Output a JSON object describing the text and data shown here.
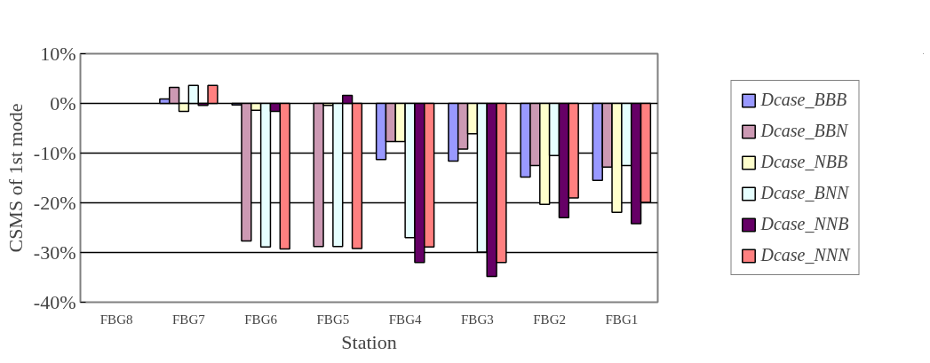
{
  "chart_data": {
    "type": "bar",
    "xlabel": "Station",
    "ylabel": "CSMS of 1st mode",
    "categories": [
      "FBG8",
      "FBG7",
      "FBG6",
      "FBG5",
      "FBG4",
      "FBG3",
      "FBG2",
      "FBG1"
    ],
    "series": [
      {
        "name": "Dcase_BBB",
        "color": "#9999ff",
        "values": [
          null,
          0.9,
          -0.3,
          null,
          -11.3,
          -11.6,
          -14.8,
          -15.5
        ]
      },
      {
        "name": "Dcase_BBN",
        "color": "#cc99b3",
        "values": [
          null,
          3.2,
          -27.7,
          -28.8,
          -7.7,
          -9.2,
          -12.5,
          -12.8
        ]
      },
      {
        "name": "Dcase_NBB",
        "color": "#ffffcc",
        "values": [
          null,
          -1.6,
          -1.4,
          -0.4,
          -7.7,
          -6.1,
          -20.3,
          -21.9
        ]
      },
      {
        "name": "Dcase_BNN",
        "color": "#e6ffff",
        "values": [
          null,
          3.6,
          -28.9,
          -28.8,
          -27.0,
          -29.9,
          -10.5,
          -12.5
        ]
      },
      {
        "name": "Dcase_NNB",
        "color": "#660066",
        "values": [
          null,
          -0.4,
          -1.6,
          1.6,
          -32.0,
          -34.8,
          -23.0,
          -24.2
        ]
      },
      {
        "name": "Dcase_NNN",
        "color": "#ff8080",
        "values": [
          null,
          3.6,
          -29.3,
          -29.2,
          -28.9,
          -32.0,
          -19.0,
          -19.9
        ]
      }
    ],
    "ylim": [
      -40,
      10
    ],
    "yticks": [
      {
        "value": -40,
        "label": "-40%"
      },
      {
        "value": -30,
        "label": "-30%"
      },
      {
        "value": -20,
        "label": "-20%"
      },
      {
        "value": -10,
        "label": "-10%"
      },
      {
        "value": 0,
        "label": "0%"
      },
      {
        "value": 10,
        "label": "10%"
      }
    ],
    "grid": "y",
    "legend": "right"
  }
}
